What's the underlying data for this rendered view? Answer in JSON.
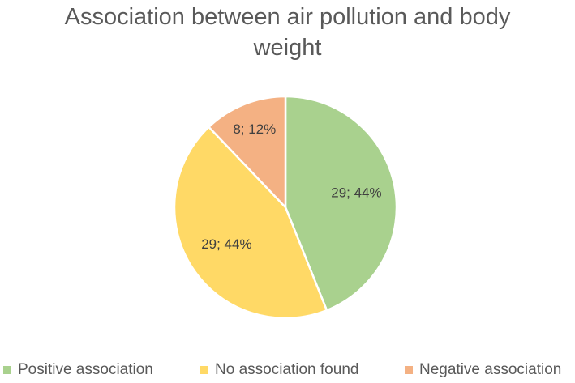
{
  "chart_data": {
    "type": "pie",
    "title_lines": [
      "Association between air pollution and body",
      "weight"
    ],
    "slices": [
      {
        "name": "Positive association",
        "value": 29,
        "percent": 44,
        "label": "29; 44%",
        "color": "#A9D18E"
      },
      {
        "name": "No association found",
        "value": 29,
        "percent": 44,
        "label": "29; 44%",
        "color": "#FFD966"
      },
      {
        "name": "Negative association",
        "value": 8,
        "percent": 12,
        "label": "8; 12%",
        "color": "#F4B183"
      }
    ],
    "legend_position": "bottom"
  }
}
